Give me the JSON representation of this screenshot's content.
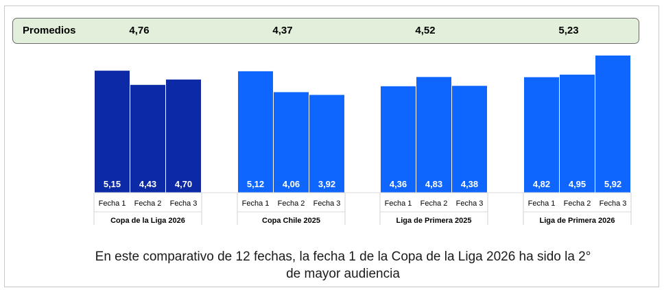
{
  "averages": {
    "label": "Promedios",
    "values": [
      "4,76",
      "4,37",
      "4,52",
      "5,23"
    ]
  },
  "chart_data": {
    "type": "bar",
    "title": "",
    "xlabel": "",
    "ylabel": "",
    "ylim": [
      0,
      6.5
    ],
    "legend": "none",
    "grid": false,
    "groups": [
      {
        "name": "Copa de la Liga 2026",
        "color": "#0d2aa6",
        "categories": [
          "Fecha 1",
          "Fecha 2",
          "Fecha 3"
        ],
        "values": [
          5.15,
          4.43,
          4.7
        ],
        "labels": [
          "5,15",
          "4,43",
          "4,70"
        ]
      },
      {
        "name": "Copa Chile 2025",
        "color": "#0f66ff",
        "categories": [
          "Fecha 1",
          "Fecha 2",
          "Fecha 3"
        ],
        "values": [
          5.12,
          4.06,
          3.92
        ],
        "labels": [
          "5,12",
          "4,06",
          "3,92"
        ]
      },
      {
        "name": "Liga de Primera 2025",
        "color": "#0f66ff",
        "categories": [
          "Fecha 1",
          "Fecha 2",
          "Fecha 3"
        ],
        "values": [
          4.36,
          4.83,
          4.38
        ],
        "labels": [
          "4,36",
          "4,83",
          "4,38"
        ]
      },
      {
        "name": "Liga de Primera 2026",
        "color": "#0f66ff",
        "categories": [
          "Fecha 1",
          "Fecha 2",
          "Fecha 3"
        ],
        "values": [
          4.82,
          4.95,
          5.92
        ],
        "labels": [
          "4,82",
          "4,95",
          "5,92"
        ]
      }
    ]
  },
  "caption": {
    "line1": "En este comparativo de 12 fechas, la fecha 1 de la Copa de la Liga 2026 ha sido la 2°",
    "line2": "de mayor audiencia"
  }
}
